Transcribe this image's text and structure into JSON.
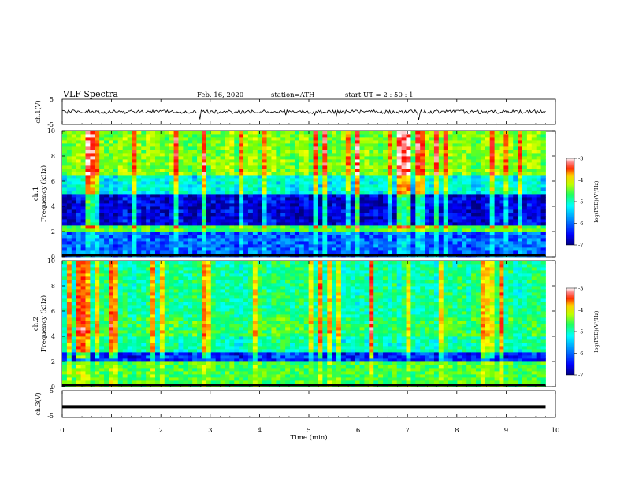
{
  "header": {
    "title": "VLF  Spectra",
    "date": "Feb. 16, 2020",
    "station": "station=ATH",
    "start": "start  UT  =   2  : 50 : 1"
  },
  "colors": {
    "colormap": [
      "#000080",
      "#0000ff",
      "#0080ff",
      "#00ffff",
      "#00ff80",
      "#80ff00",
      "#ffff00",
      "#ff8000",
      "#ff0000",
      "#ffffff"
    ],
    "trace": "#000000"
  },
  "chart_data": [
    {
      "type": "line",
      "panel": "ch1-voltage",
      "ylabel": "ch.1(V)",
      "ylim": [
        -5,
        5
      ],
      "y_ticks": [
        "5",
        "-5"
      ],
      "x_range_min": [
        0,
        9.8
      ],
      "baseline_v": 0,
      "noise_amplitude_v": 1.5
    },
    {
      "type": "heatmap",
      "panel": "ch1-spectrogram",
      "ylabel_channel": "ch.1",
      "ylabel": "Frequency  (kHz)",
      "ylim_khz": [
        0,
        10
      ],
      "y_ticks": [
        "0",
        "2",
        "4",
        "6",
        "8",
        "10"
      ],
      "colorbar": {
        "label": "log(PSD)(V²/Hz)",
        "min": -7,
        "max": -3,
        "ticks": [
          "-3",
          "-4",
          "-5",
          "-6",
          "-7"
        ]
      },
      "bands": [
        {
          "from_khz": 0,
          "to_khz": 2,
          "level": -6.2
        },
        {
          "from_khz": 2,
          "to_khz": 2.5,
          "level": -5.0
        },
        {
          "from_khz": 2.5,
          "to_khz": 5,
          "level": -6.7
        },
        {
          "from_khz": 5,
          "to_khz": 6.5,
          "level": -5.6
        },
        {
          "from_khz": 6.5,
          "to_khz": 10,
          "level": -4.8
        }
      ]
    },
    {
      "type": "heatmap",
      "panel": "ch2-spectrogram",
      "ylabel_channel": "ch.2",
      "ylabel": "Frequency  (kHz)",
      "ylim_khz": [
        0,
        10
      ],
      "y_ticks": [
        "0",
        "2",
        "4",
        "6",
        "8",
        "10"
      ],
      "colorbar": {
        "label": "log(PSD)(V²/Hz)",
        "min": -7,
        "max": -3,
        "ticks": [
          "-3",
          "-4",
          "-5",
          "-6",
          "-7"
        ]
      },
      "bands": [
        {
          "from_khz": 0,
          "to_khz": 2,
          "level": -5.0
        },
        {
          "from_khz": 2,
          "to_khz": 2.8,
          "level": -6.4
        },
        {
          "from_khz": 2.8,
          "to_khz": 4.0,
          "level": -5.4
        },
        {
          "from_khz": 4.0,
          "to_khz": 5.5,
          "level": -5.1
        },
        {
          "from_khz": 5.5,
          "to_khz": 10,
          "level": -5.3
        }
      ]
    },
    {
      "type": "line",
      "panel": "ch3-voltage",
      "ylabel": "ch.3(V)",
      "ylim": [
        -5,
        5
      ],
      "y_ticks": [
        "5",
        "-5"
      ],
      "x_range_min": [
        0,
        9.8
      ],
      "baseline_v": -1
    }
  ],
  "x_axis": {
    "label": "Time  (min)",
    "range": [
      0,
      10
    ],
    "ticks": [
      "0",
      "1",
      "2",
      "3",
      "4",
      "5",
      "6",
      "7",
      "8",
      "9",
      "10"
    ]
  }
}
